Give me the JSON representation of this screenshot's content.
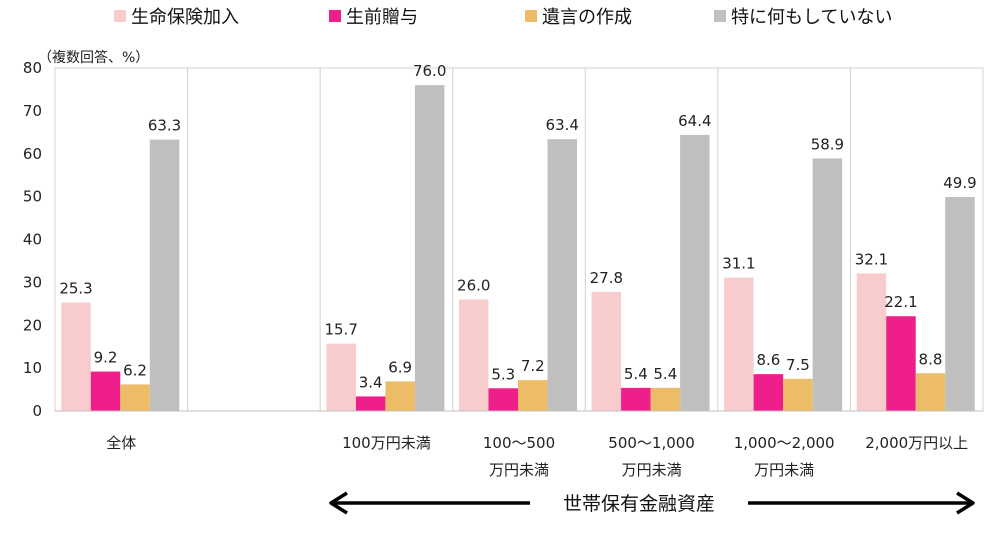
{
  "unit_label": "（複数回答、%）",
  "chart_data": {
    "type": "bar",
    "ylim": [
      0,
      80
    ],
    "yticks": [
      0,
      10,
      20,
      30,
      40,
      50,
      60,
      70,
      80
    ],
    "grid": "vertical separators",
    "legend_position": "top",
    "categories": [
      [
        "全体"
      ],
      [
        ""
      ],
      [
        "100万円未満"
      ],
      [
        "100～500",
        "万円未満"
      ],
      [
        "500～1,000",
        "万円未満"
      ],
      [
        "1,000～2,000",
        "万円未満"
      ],
      [
        "2,000万円以上"
      ]
    ],
    "series": [
      {
        "name": "生命保険加入",
        "color": "#f8cbcd",
        "values": [
          25.3,
          null,
          15.7,
          26.0,
          27.8,
          31.1,
          32.1
        ]
      },
      {
        "name": "生前贈与",
        "color": "#ee1e8b",
        "values": [
          9.2,
          null,
          3.4,
          5.3,
          5.4,
          8.6,
          22.1
        ]
      },
      {
        "name": "遺言の作成",
        "color": "#ecbd66",
        "values": [
          6.2,
          null,
          6.9,
          7.2,
          5.4,
          7.5,
          8.8
        ]
      },
      {
        "name": "特に何もしていない",
        "color": "#bfbfbf",
        "values": [
          63.3,
          null,
          76.0,
          63.4,
          64.4,
          58.9,
          49.9
        ]
      }
    ],
    "value_labels": [
      [
        "25.3",
        "9.2",
        "6.2",
        "63.3"
      ],
      null,
      [
        "15.7",
        "3.4",
        "6.9",
        "76.0"
      ],
      [
        "26.0",
        "5.3",
        "7.2",
        "63.4"
      ],
      [
        "27.8",
        "5.4",
        "5.4",
        "64.4"
      ],
      [
        "31.1",
        "8.6",
        "7.5",
        "58.9"
      ],
      [
        "32.1",
        "22.1",
        "8.8",
        "49.9"
      ]
    ],
    "range_label": "世帯保有金融資産",
    "range_arrow": "double-headed, spanning the asset-bracket categories"
  }
}
